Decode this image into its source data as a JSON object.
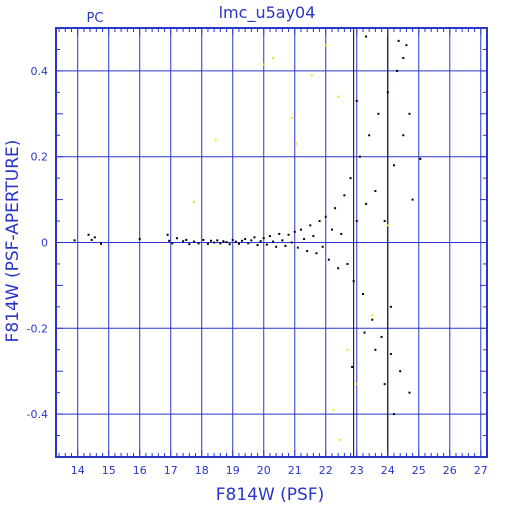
{
  "chart_data": {
    "type": "scatter",
    "title": "lmc_u5ay04",
    "corner_label": "PC",
    "xlabel": "F814W (PSF)",
    "ylabel": "F814W (PSF-APERTURE)",
    "xlim": [
      13.3,
      27.2
    ],
    "ylim": [
      -0.5,
      0.5
    ],
    "xticks": [
      14,
      15,
      16,
      17,
      18,
      19,
      20,
      21,
      22,
      23,
      24,
      25,
      26,
      27
    ],
    "yticks": [
      -0.4,
      -0.2,
      0,
      0.2,
      0.4
    ],
    "ytick_labels": [
      "-0.4",
      "-0.2",
      "0",
      "0.2",
      "0.4"
    ],
    "grid": true,
    "colors": {
      "axes": "#2a36c8",
      "grid": "#2a36c8",
      "black_points": "#000000",
      "yellow_points": "#f2e600"
    },
    "vertical_markers": [
      22.9,
      24.0
    ],
    "series": [
      {
        "color": "black",
        "points": [
          [
            13.9,
            0.005
          ],
          [
            14.35,
            0.018
          ],
          [
            14.45,
            0.006
          ],
          [
            14.55,
            0.012
          ],
          [
            14.75,
            -0.003
          ],
          [
            16.0,
            0.008
          ],
          [
            16.9,
            0.018
          ],
          [
            16.95,
            0.004
          ],
          [
            17.05,
            -0.002
          ],
          [
            17.2,
            0.01
          ],
          [
            17.4,
            0.003
          ],
          [
            17.5,
            0.006
          ],
          [
            17.6,
            -0.004
          ],
          [
            17.75,
            0.002
          ],
          [
            17.9,
            -0.002
          ],
          [
            18.05,
            0.006
          ],
          [
            18.2,
            -0.003
          ],
          [
            18.3,
            0.004
          ],
          [
            18.4,
            0.0
          ],
          [
            18.5,
            0.005
          ],
          [
            18.6,
            -0.002
          ],
          [
            18.7,
            0.003
          ],
          [
            18.8,
            0.001
          ],
          [
            18.9,
            -0.004
          ],
          [
            19.0,
            0.006
          ],
          [
            19.1,
            0.002
          ],
          [
            19.2,
            -0.003
          ],
          [
            19.3,
            0.004
          ],
          [
            19.4,
            0.008
          ],
          [
            19.5,
            -0.002
          ],
          [
            19.6,
            0.005
          ],
          [
            19.7,
            0.012
          ],
          [
            19.8,
            -0.006
          ],
          [
            19.9,
            0.003
          ],
          [
            20.0,
            0.01
          ],
          [
            20.1,
            -0.005
          ],
          [
            20.2,
            0.015
          ],
          [
            20.3,
            0.002
          ],
          [
            20.4,
            -0.01
          ],
          [
            20.5,
            0.02
          ],
          [
            20.6,
            0.005
          ],
          [
            20.7,
            -0.008
          ],
          [
            20.8,
            0.018
          ],
          [
            20.9,
            0.0
          ],
          [
            21.0,
            0.025
          ],
          [
            21.1,
            -0.012
          ],
          [
            21.2,
            0.03
          ],
          [
            21.3,
            0.008
          ],
          [
            21.4,
            -0.02
          ],
          [
            21.5,
            0.04
          ],
          [
            21.6,
            0.015
          ],
          [
            21.7,
            -0.025
          ],
          [
            21.8,
            0.05
          ],
          [
            21.9,
            -0.01
          ],
          [
            22.0,
            0.06
          ],
          [
            22.1,
            -0.04
          ],
          [
            22.2,
            0.03
          ],
          [
            22.3,
            0.08
          ],
          [
            22.4,
            -0.06
          ],
          [
            22.5,
            0.02
          ],
          [
            22.6,
            0.11
          ],
          [
            22.7,
            -0.05
          ],
          [
            22.8,
            0.15
          ],
          [
            22.9,
            -0.09
          ],
          [
            23.0,
            0.05
          ],
          [
            23.1,
            0.2
          ],
          [
            23.2,
            -0.12
          ],
          [
            23.3,
            0.09
          ],
          [
            23.4,
            0.25
          ],
          [
            23.5,
            -0.18
          ],
          [
            23.6,
            0.12
          ],
          [
            23.7,
            0.3
          ],
          [
            23.8,
            -0.22
          ],
          [
            23.9,
            0.05
          ],
          [
            24.0,
            0.35
          ],
          [
            24.1,
            -0.26
          ],
          [
            24.2,
            0.18
          ],
          [
            24.3,
            0.4
          ],
          [
            24.4,
            -0.3
          ],
          [
            24.5,
            0.25
          ],
          [
            24.6,
            0.46
          ],
          [
            24.7,
            -0.35
          ],
          [
            24.8,
            0.1
          ],
          [
            25.05,
            0.195
          ],
          [
            23.3,
            0.48
          ],
          [
            24.5,
            0.43
          ],
          [
            23.9,
            -0.33
          ],
          [
            24.2,
            -0.4
          ],
          [
            24.1,
            -0.15
          ],
          [
            23.6,
            -0.25
          ],
          [
            22.85,
            -0.29
          ],
          [
            23.25,
            -0.21
          ],
          [
            24.35,
            0.47
          ],
          [
            24.7,
            0.3
          ],
          [
            23.0,
            0.33
          ]
        ]
      },
      {
        "color": "yellow",
        "points": [
          [
            17.75,
            0.095
          ],
          [
            18.45,
            0.24
          ],
          [
            20.0,
            0.415
          ],
          [
            20.3,
            0.43
          ],
          [
            20.9,
            0.29
          ],
          [
            21.05,
            0.23
          ],
          [
            21.55,
            0.39
          ],
          [
            22.0,
            0.46
          ],
          [
            22.4,
            0.34
          ],
          [
            22.7,
            -0.25
          ],
          [
            23.5,
            -0.17
          ],
          [
            22.25,
            -0.39
          ],
          [
            23.0,
            -0.33
          ],
          [
            22.45,
            -0.46
          ],
          [
            24.0,
            0.04
          ]
        ]
      }
    ]
  }
}
